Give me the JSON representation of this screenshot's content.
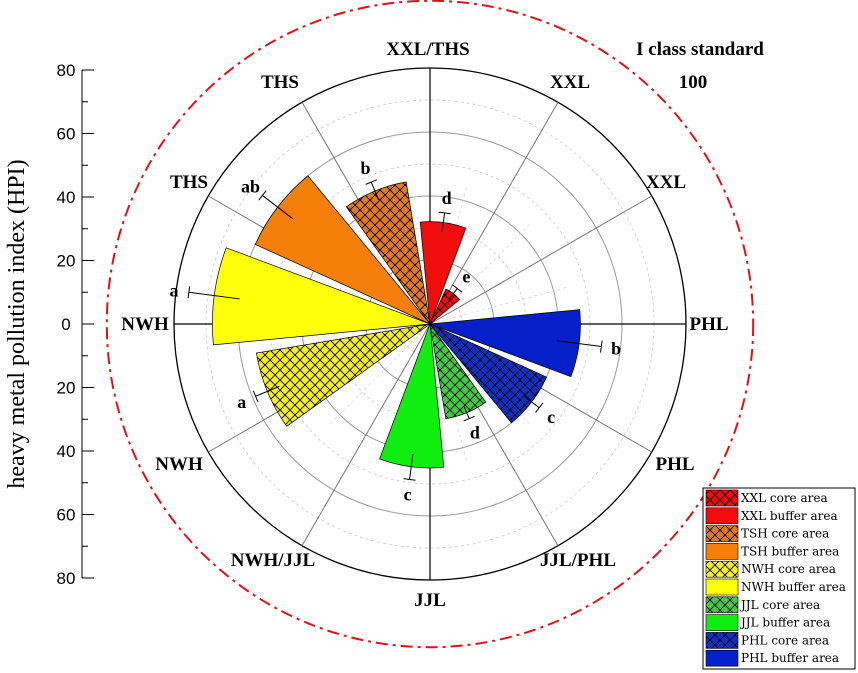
{
  "chart_data": {
    "type": "polar-bar",
    "ylabel": "heavy metal pollution index (HPI)",
    "radial_ticks": [
      "80",
      "60",
      "40",
      "20",
      "0",
      "20",
      "40",
      "60",
      "80"
    ],
    "radial_max": 100,
    "standard": {
      "label": "I class standard",
      "value_label": "100",
      "value": 100,
      "color": "#e0101a",
      "style": "dash-dot"
    },
    "direction_labels": [
      "XXL/THS",
      "XXL",
      "XXL",
      "PHL",
      "PHL",
      "JJL/PHL",
      "JJL",
      "NWH/JJL",
      "NWH",
      "NWH",
      "THS",
      "THS"
    ],
    "series": [
      {
        "name": "XXL core area",
        "sector": "XXL",
        "value": 12,
        "error": 2,
        "sig": "e",
        "color": "#f20d0d",
        "hatch": true
      },
      {
        "name": "XXL buffer area",
        "sector": "XXL",
        "value": 32,
        "error": 3,
        "sig": "d",
        "color": "#f20d0d",
        "hatch": false
      },
      {
        "name": "TSH core area",
        "sector": "THS",
        "value": 45,
        "error": 3,
        "sig": "b",
        "color": "#e57a1a",
        "hatch": true
      },
      {
        "name": "TSH buffer area",
        "sector": "THS",
        "value": 60,
        "error": 6,
        "sig": "ab",
        "color": "#f57f0a",
        "hatch": false
      },
      {
        "name": "NWH core area",
        "sector": "NWH",
        "value": 55,
        "error": 4,
        "sig": "a",
        "color": "#f7f01a",
        "hatch": true
      },
      {
        "name": "NWH buffer area",
        "sector": "NWH",
        "value": 68,
        "error": 8,
        "sig": "a",
        "color": "#ffff0a",
        "hatch": false
      },
      {
        "name": "JJL core area",
        "sector": "JJL",
        "value": 30,
        "error": 2,
        "sig": "d",
        "color": "#3fcc3f",
        "hatch": true
      },
      {
        "name": "JJL buffer area",
        "sector": "JJL",
        "value": 45,
        "error": 4,
        "sig": "c",
        "color": "#10ee10",
        "hatch": false
      },
      {
        "name": "PHL core area",
        "sector": "PHL",
        "value": 40,
        "error": 3,
        "sig": "c",
        "color": "#1030c8",
        "hatch": true
      },
      {
        "name": "PHL buffer area",
        "sector": "PHL",
        "value": 47,
        "error": 7,
        "sig": "b",
        "color": "#0520c8",
        "hatch": false
      }
    ]
  }
}
